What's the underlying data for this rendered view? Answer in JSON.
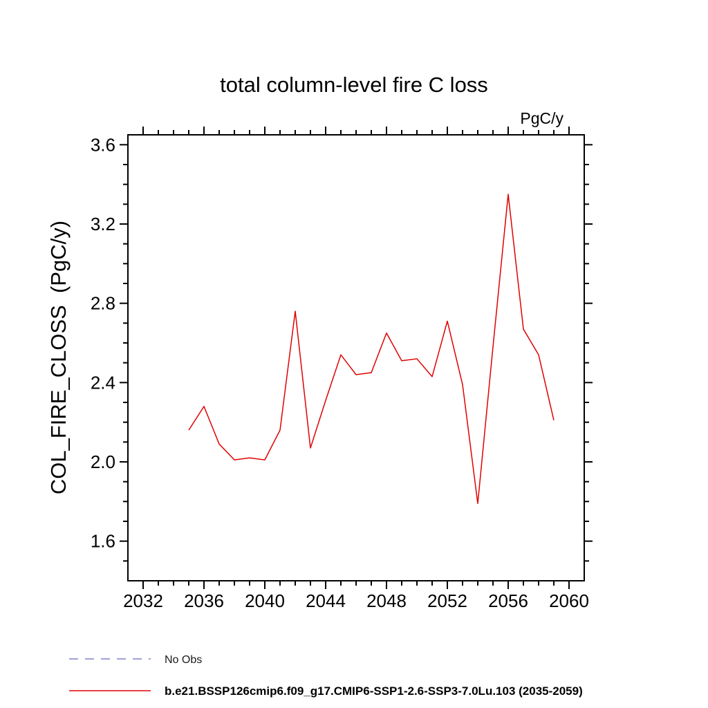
{
  "page": {
    "background": "#ffffff"
  },
  "chart_data": {
    "type": "line",
    "title": "total column-level fire C loss",
    "units_label": "PgC/y",
    "ylabel": "COL_FIRE_CLOSS  (PgC/y)",
    "xlabel": "",
    "grid": false,
    "legend_position": "bottom-left",
    "xlim": [
      2031,
      2061
    ],
    "ylim": [
      1.4,
      3.65
    ],
    "xticks_major": [
      2032,
      2036,
      2040,
      2044,
      2048,
      2052,
      2056,
      2060
    ],
    "xticks_minor_step": 1,
    "yticks_major": [
      1.6,
      2.0,
      2.4,
      2.8,
      3.2,
      3.6
    ],
    "yticks_minor_step": 0.1,
    "axis_color": "#000000",
    "series": [
      {
        "name": "b.e21.BSSP126cmip6.f09_g17.CMIP6-SSP1-2.6-SSP3-7.0Lu.103 (2035-2059)",
        "color": "#e00000",
        "line_style": "solid",
        "x": [
          2035,
          2036,
          2037,
          2038,
          2039,
          2040,
          2041,
          2042,
          2043,
          2044,
          2045,
          2046,
          2047,
          2048,
          2049,
          2050,
          2051,
          2052,
          2053,
          2054,
          2055,
          2056,
          2057,
          2058,
          2059
        ],
        "y": [
          2.16,
          2.28,
          2.09,
          2.01,
          2.02,
          2.01,
          2.16,
          2.76,
          2.07,
          2.31,
          2.54,
          2.44,
          2.45,
          2.65,
          2.51,
          2.52,
          2.43,
          2.71,
          2.39,
          1.79,
          2.58,
          3.35,
          2.67,
          2.54,
          2.21
        ]
      }
    ],
    "legend": [
      {
        "label": "No Obs",
        "color": "#8080cd",
        "line_style": "dashed"
      },
      {
        "label": "b.e21.BSSP126cmip6.f09_g17.CMIP6-SSP1-2.6-SSP3-7.0Lu.103 (2035-2059)",
        "color": "#e00000",
        "line_style": "solid"
      }
    ]
  }
}
